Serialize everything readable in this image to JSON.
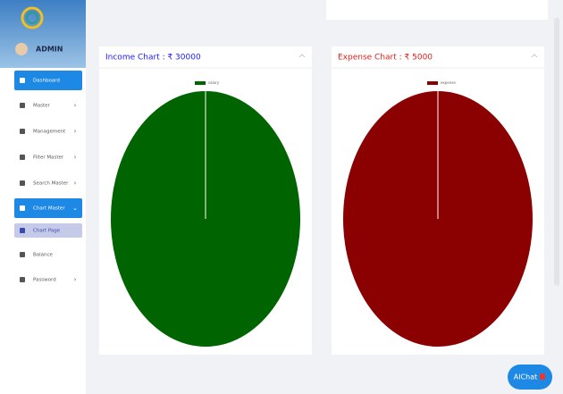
{
  "sidebar": {
    "user": "ADMIN",
    "menu": [
      {
        "label": "Dashboard",
        "state": "active",
        "arrow": ""
      },
      {
        "label": "Master",
        "state": "",
        "arrow": "›"
      },
      {
        "label": "Management",
        "state": "",
        "arrow": "›"
      },
      {
        "label": "Filter Master",
        "state": "",
        "arrow": "›"
      },
      {
        "label": "Search Master",
        "state": "",
        "arrow": "›"
      },
      {
        "label": "Chart Master",
        "state": "active",
        "arrow": "⌄"
      },
      {
        "label": "Chart Page",
        "state": "sub",
        "arrow": ""
      },
      {
        "label": "Balance",
        "state": "",
        "arrow": ""
      },
      {
        "label": "Password",
        "state": "",
        "arrow": "›"
      }
    ]
  },
  "chat_button": "AIChat",
  "chart_data": [
    {
      "type": "pie",
      "title": "Income Chart : ₹ 30000",
      "title_color": "#1a1aff",
      "categories": [
        "salary"
      ],
      "values": [
        30000
      ],
      "colors": [
        "#006400"
      ]
    },
    {
      "type": "pie",
      "title": "Expense Chart : ₹ 5000",
      "title_color": "#e0201c",
      "categories": [
        "expense"
      ],
      "values": [
        5000
      ],
      "colors": [
        "#8b0000"
      ]
    }
  ]
}
